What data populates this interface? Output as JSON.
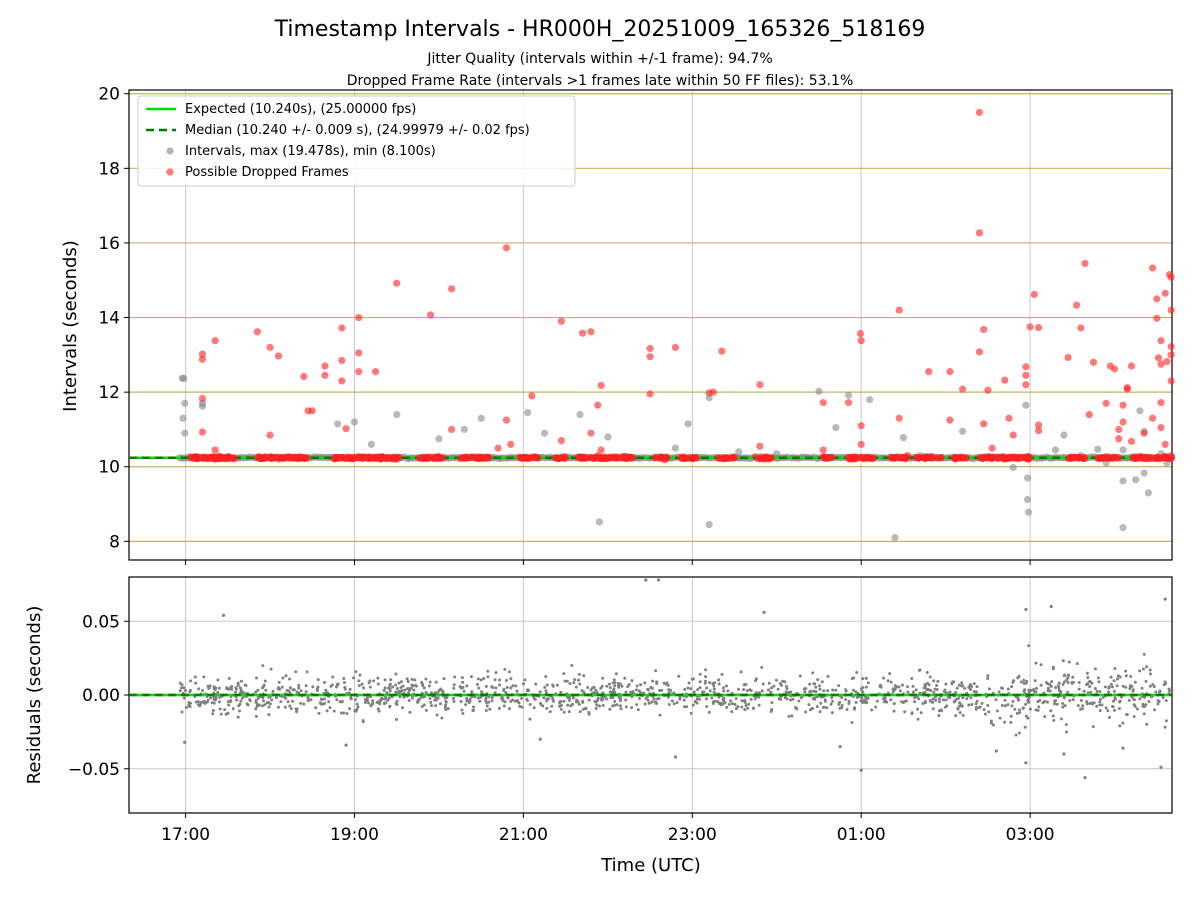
{
  "chart_data": [
    {
      "type": "scatter",
      "title": "Timestamp Intervals - HR000H_20251009_165326_518169",
      "subtitle_lines": [
        "Jitter Quality (intervals within +/-1 frame): 94.7%",
        "Dropped Frame Rate (intervals >1 frames late within 50 FF files): 53.1%"
      ],
      "ylabel": "Intervals (seconds)",
      "xlabel": "",
      "x_unit": "hours since 00:00 UTC 2025-10-09",
      "xlim": [
        16.33,
        28.68
      ],
      "ylim": [
        7.5,
        20.1
      ],
      "yticks": [
        8,
        10,
        12,
        14,
        16,
        18,
        20
      ],
      "ytick_labels": [
        "8",
        "10",
        "12",
        "14",
        "16",
        "18",
        "20"
      ],
      "xticks": [
        17,
        19,
        21,
        23,
        25,
        27
      ],
      "grid": true,
      "legend_position": "upper-left",
      "legend": [
        "Expected (10.240s), (25.00000 fps)",
        "Median (10.240 +/- 0.009 s), (24.99979 +/- 0.02 fps)",
        "Intervals, max (19.478s), min (8.100s)",
        "Possible Dropped Frames"
      ],
      "colors": {
        "expected": "#00e000",
        "median": "#007a00",
        "intervals": "#808080",
        "dropped": "#ff2020",
        "frame_lines": "#c8b060",
        "grid": "#c8c8c8"
      },
      "expected_interval": 10.24,
      "median_interval": 10.24,
      "baseline_x_range": [
        16.93,
        28.68
      ],
      "frame_lines": [
        8.0,
        10.0,
        12.0,
        14.0,
        16.0,
        18.0,
        20.0
      ],
      "series": [
        {
          "name": "Intervals",
          "points": [
            [
              16.96,
              12.37
            ],
            [
              16.98,
              12.37
            ],
            [
              16.99,
              11.7
            ],
            [
              16.97,
              11.3
            ],
            [
              16.99,
              10.9
            ],
            [
              17.2,
              11.62
            ],
            [
              17.2,
              11.7
            ],
            [
              18.8,
              11.15
            ],
            [
              19.0,
              11.2
            ],
            [
              19.2,
              10.6
            ],
            [
              19.5,
              11.4
            ],
            [
              20.0,
              10.75
            ],
            [
              20.3,
              11.0
            ],
            [
              20.5,
              11.3
            ],
            [
              21.05,
              11.45
            ],
            [
              21.25,
              10.9
            ],
            [
              21.67,
              11.4
            ],
            [
              21.9,
              8.52
            ],
            [
              22.0,
              10.8
            ],
            [
              22.8,
              10.5
            ],
            [
              22.95,
              11.15
            ],
            [
              23.2,
              11.85
            ],
            [
              23.2,
              8.45
            ],
            [
              23.55,
              10.4
            ],
            [
              24.5,
              12.02
            ],
            [
              24.7,
              11.05
            ],
            [
              24.85,
              11.92
            ],
            [
              25.1,
              11.8
            ],
            [
              25.4,
              8.1
            ],
            [
              25.5,
              10.78
            ],
            [
              26.2,
              10.95
            ],
            [
              26.7,
              10.2
            ],
            [
              26.8,
              9.98
            ],
            [
              26.95,
              11.65
            ],
            [
              26.97,
              9.7
            ],
            [
              26.97,
              9.12
            ],
            [
              26.98,
              8.78
            ],
            [
              27.3,
              10.45
            ],
            [
              27.4,
              10.85
            ],
            [
              27.6,
              10.3
            ],
            [
              27.8,
              10.47
            ],
            [
              27.9,
              10.1
            ],
            [
              28.1,
              9.62
            ],
            [
              28.1,
              8.37
            ],
            [
              28.25,
              9.65
            ],
            [
              28.3,
              11.5
            ],
            [
              28.35,
              10.95
            ],
            [
              28.35,
              9.83
            ],
            [
              28.4,
              9.3
            ],
            [
              28.55,
              10.35
            ],
            [
              28.62,
              10.1
            ],
            [
              28.1,
              10.45
            ],
            [
              25.7,
              10.3
            ],
            [
              24.0,
              10.35
            ]
          ]
        },
        {
          "name": "Possible Dropped Frames",
          "points": [
            [
              17.2,
              13.02
            ],
            [
              17.2,
              12.88
            ],
            [
              17.2,
              11.83
            ],
            [
              17.2,
              10.93
            ],
            [
              17.35,
              13.38
            ],
            [
              17.35,
              10.45
            ],
            [
              17.85,
              13.62
            ],
            [
              18.0,
              13.2
            ],
            [
              18.0,
              10.85
            ],
            [
              18.1,
              12.97
            ],
            [
              18.4,
              12.42
            ],
            [
              18.45,
              11.5
            ],
            [
              18.5,
              11.5
            ],
            [
              18.65,
              12.7
            ],
            [
              18.65,
              12.45
            ],
            [
              18.85,
              13.72
            ],
            [
              18.85,
              12.85
            ],
            [
              18.85,
              12.3
            ],
            [
              18.9,
              11.02
            ],
            [
              19.05,
              14.0
            ],
            [
              19.05,
              13.05
            ],
            [
              19.05,
              12.55
            ],
            [
              19.25,
              12.55
            ],
            [
              19.5,
              14.92
            ],
            [
              19.9,
              14.07
            ],
            [
              20.15,
              14.77
            ],
            [
              20.15,
              11.0
            ],
            [
              20.7,
              10.5
            ],
            [
              20.8,
              15.87
            ],
            [
              20.8,
              11.25
            ],
            [
              20.85,
              10.6
            ],
            [
              21.1,
              11.9
            ],
            [
              21.45,
              13.9
            ],
            [
              21.45,
              10.7
            ],
            [
              21.7,
              13.58
            ],
            [
              21.8,
              13.62
            ],
            [
              21.8,
              10.9
            ],
            [
              21.88,
              10.3
            ],
            [
              21.88,
              11.65
            ],
            [
              21.92,
              12.18
            ],
            [
              21.92,
              10.45
            ],
            [
              22.5,
              13.17
            ],
            [
              22.5,
              12.95
            ],
            [
              22.5,
              11.95
            ],
            [
              22.8,
              13.2
            ],
            [
              23.2,
              11.98
            ],
            [
              23.25,
              12.0
            ],
            [
              23.35,
              13.1
            ],
            [
              23.8,
              12.2
            ],
            [
              23.8,
              10.55
            ],
            [
              24.55,
              11.72
            ],
            [
              24.55,
              10.45
            ],
            [
              24.85,
              11.72
            ],
            [
              24.99,
              13.57
            ],
            [
              25.0,
              13.38
            ],
            [
              25.0,
              11.1
            ],
            [
              25.0,
              10.6
            ],
            [
              25.45,
              14.2
            ],
            [
              25.45,
              11.3
            ],
            [
              25.55,
              10.3
            ],
            [
              25.8,
              12.55
            ],
            [
              26.05,
              12.55
            ],
            [
              26.05,
              11.25
            ],
            [
              26.2,
              12.08
            ],
            [
              26.4,
              19.5
            ],
            [
              26.4,
              16.27
            ],
            [
              26.4,
              13.08
            ],
            [
              26.45,
              13.68
            ],
            [
              26.45,
              11.15
            ],
            [
              26.5,
              12.05
            ],
            [
              26.55,
              10.5
            ],
            [
              26.7,
              12.32
            ],
            [
              26.75,
              11.3
            ],
            [
              26.8,
              10.85
            ],
            [
              26.95,
              12.68
            ],
            [
              26.95,
              12.45
            ],
            [
              26.95,
              12.2
            ],
            [
              27.0,
              13.75
            ],
            [
              27.05,
              14.62
            ],
            [
              27.1,
              13.73
            ],
            [
              27.1,
              11.12
            ],
            [
              27.1,
              10.97
            ],
            [
              27.45,
              12.93
            ],
            [
              27.55,
              14.33
            ],
            [
              27.6,
              13.72
            ],
            [
              27.65,
              15.45
            ],
            [
              27.7,
              11.4
            ],
            [
              27.75,
              12.8
            ],
            [
              27.9,
              11.7
            ],
            [
              27.95,
              12.7
            ],
            [
              28.0,
              12.62
            ],
            [
              28.05,
              11.0
            ],
            [
              28.05,
              10.75
            ],
            [
              28.1,
              11.65
            ],
            [
              28.1,
              11.2
            ],
            [
              28.15,
              12.12
            ],
            [
              28.15,
              12.08
            ],
            [
              28.2,
              12.7
            ],
            [
              28.2,
              10.68
            ],
            [
              28.45,
              15.33
            ],
            [
              28.45,
              11.3
            ],
            [
              28.5,
              14.5
            ],
            [
              28.5,
              13.98
            ],
            [
              28.52,
              12.92
            ],
            [
              28.55,
              13.38
            ],
            [
              28.55,
              12.75
            ],
            [
              28.55,
              11.72
            ],
            [
              28.55,
              11.05
            ],
            [
              28.6,
              14.65
            ],
            [
              28.62,
              12.82
            ],
            [
              28.65,
              15.15
            ],
            [
              28.67,
              15.08
            ],
            [
              28.67,
              14.2
            ],
            [
              28.67,
              13.22
            ],
            [
              28.67,
              13.0
            ],
            [
              28.67,
              12.3
            ],
            [
              28.67,
              10.3
            ],
            [
              28.35,
              10.9
            ],
            [
              28.6,
              10.6
            ]
          ]
        }
      ]
    },
    {
      "type": "scatter",
      "title": "",
      "xlabel": "Time (UTC)",
      "ylabel": "Residuals (seconds)",
      "xlim": [
        16.33,
        28.68
      ],
      "ylim": [
        -0.08,
        0.08
      ],
      "yticks": [
        -0.05,
        0.0,
        0.05
      ],
      "ytick_labels": [
        "−0.05",
        "0.00",
        "0.05"
      ],
      "xticks": [
        17,
        19,
        21,
        23,
        25,
        27
      ],
      "xtick_labels": [
        "17:00",
        "19:00",
        "21:00",
        "23:00",
        "01:00",
        "03:00"
      ],
      "grid": true,
      "series": [
        {
          "name": "Residuals",
          "color": "#808080",
          "points": [
            [
              17.45,
              0.054
            ],
            [
              22.45,
              0.078
            ],
            [
              22.6,
              0.078
            ],
            [
              23.85,
              0.056
            ],
            [
              26.95,
              0.058
            ],
            [
              27.25,
              0.06
            ],
            [
              28.6,
              0.065
            ],
            [
              27.65,
              -0.056
            ],
            [
              25.0,
              -0.051
            ],
            [
              26.95,
              -0.046
            ],
            [
              28.55,
              -0.049
            ],
            [
              22.8,
              -0.042
            ],
            [
              16.99,
              -0.032
            ],
            [
              18.9,
              -0.034
            ],
            [
              21.2,
              -0.03
            ],
            [
              24.75,
              -0.035
            ],
            [
              26.6,
              -0.038
            ],
            [
              27.4,
              -0.04
            ],
            [
              28.1,
              -0.036
            ]
          ]
        }
      ]
    }
  ]
}
